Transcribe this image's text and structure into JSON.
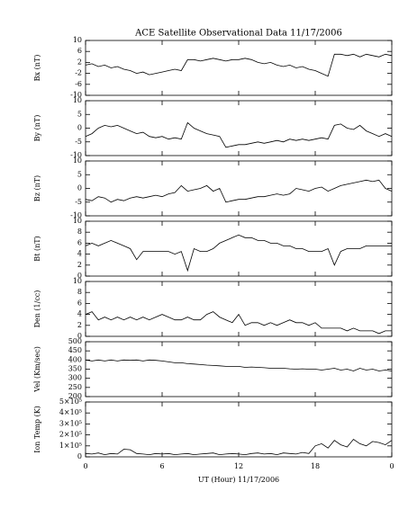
{
  "chart_data": {
    "type": "line",
    "title": "ACE Satellite Observational Data   11/17/2006",
    "xlabel": "UT (Hour)  11/17/2006",
    "xlim": [
      0,
      24
    ],
    "xticks": [
      0,
      6,
      12,
      18,
      {
        "value": 24,
        "label": "0"
      }
    ],
    "color": "#000000",
    "x": [
      0,
      0.5,
      1,
      1.5,
      2,
      2.5,
      3,
      3.5,
      4,
      4.5,
      5,
      5.5,
      6,
      6.5,
      7,
      7.5,
      8,
      8.5,
      9,
      9.5,
      10,
      10.5,
      11,
      11.5,
      12,
      12.5,
      13,
      13.5,
      14,
      14.5,
      15,
      15.5,
      16,
      16.5,
      17,
      17.5,
      18,
      18.5,
      19,
      19.5,
      20,
      20.5,
      21,
      21.5,
      22,
      22.5,
      23,
      23.5,
      24
    ],
    "panels": [
      {
        "ylabel": "Bx (nT)",
        "ylim": [
          -10,
          10
        ],
        "yticks": [
          -10,
          -6,
          -2,
          2,
          6,
          10
        ],
        "values": [
          1,
          1.5,
          0.5,
          1,
          0,
          0.5,
          -0.5,
          -1,
          -2,
          -1.5,
          -2.5,
          -2,
          -1.5,
          -1,
          -0.5,
          -1,
          3,
          3,
          2.5,
          3,
          3.5,
          3,
          2.5,
          3,
          3,
          3.5,
          3,
          2,
          1.5,
          2,
          1,
          0.5,
          1,
          0,
          0.5,
          -0.5,
          -1,
          -2,
          -3,
          5,
          5,
          4.5,
          5,
          4,
          5,
          4.5,
          4,
          5,
          4.5
        ]
      },
      {
        "ylabel": "By (nT)",
        "ylim": [
          -10,
          10
        ],
        "yticks": [
          -10,
          -5,
          0,
          5,
          10
        ],
        "values": [
          -3,
          -2,
          0,
          1,
          0.5,
          1,
          0,
          -1,
          -2,
          -1.5,
          -3,
          -3.5,
          -3,
          -4,
          -3.5,
          -4,
          2,
          0,
          -1,
          -2,
          -2.5,
          -3,
          -7,
          -6.5,
          -6,
          -6,
          -5.5,
          -5,
          -5.5,
          -5,
          -4.5,
          -5,
          -4,
          -4.5,
          -4,
          -4.5,
          -4,
          -3.5,
          -4,
          1,
          1.5,
          0,
          -0.5,
          1,
          -1,
          -2,
          -3,
          -2,
          -3
        ]
      },
      {
        "ylabel": "Bz (nT)",
        "ylim": [
          -10,
          10
        ],
        "yticks": [
          -10,
          -5,
          0,
          5,
          10
        ],
        "values": [
          -4,
          -4.5,
          -3,
          -3.5,
          -5,
          -4,
          -4.5,
          -3.5,
          -3,
          -3.5,
          -3,
          -2.5,
          -3,
          -2,
          -1.5,
          1,
          -1,
          -0.5,
          0,
          1,
          -1,
          0,
          -5,
          -4.5,
          -4,
          -4,
          -3.5,
          -3,
          -3,
          -2.5,
          -2,
          -2.5,
          -2,
          0,
          -0.5,
          -1,
          0,
          0.5,
          -1,
          0,
          1,
          1.5,
          2,
          2.5,
          3,
          2.5,
          3,
          0,
          -1
        ]
      },
      {
        "ylabel": "Bt (nT)",
        "ylim": [
          0,
          10
        ],
        "yticks": [
          0,
          2,
          4,
          6,
          8,
          10
        ],
        "values": [
          5.5,
          6,
          5.5,
          6,
          6.5,
          6,
          5.5,
          5,
          3,
          4.5,
          4.5,
          4.5,
          4.5,
          4.5,
          4,
          4.5,
          1,
          5,
          4.5,
          4.5,
          5,
          6,
          6.5,
          7,
          7.5,
          7,
          7,
          6.5,
          6.5,
          6,
          6,
          5.5,
          5.5,
          5,
          5,
          4.5,
          4.5,
          4.5,
          5,
          2,
          4.5,
          5,
          5,
          5,
          5.5,
          5.5,
          5.5,
          5.5,
          5.5
        ]
      },
      {
        "ylabel": "Den (1/cc)",
        "ylim": [
          0,
          10
        ],
        "yticks": [
          0,
          2,
          4,
          6,
          8,
          10
        ],
        "values": [
          4,
          4.5,
          3,
          3.5,
          3,
          3.5,
          3,
          3.5,
          3,
          3.5,
          3,
          3.5,
          4,
          3.5,
          3,
          3,
          3.5,
          3,
          3,
          4,
          4.5,
          3.5,
          3,
          2.5,
          4,
          2,
          2.5,
          2.5,
          2,
          2.5,
          2,
          2.5,
          3,
          2.5,
          2.5,
          2,
          2.5,
          1.5,
          1.5,
          1.5,
          1.5,
          1,
          1.5,
          1,
          1,
          1,
          0.5,
          1,
          1
        ]
      },
      {
        "ylabel": "Vel (Km/sec)",
        "ylim": [
          200,
          500
        ],
        "yticks": [
          200,
          250,
          300,
          350,
          400,
          450,
          500
        ],
        "values": [
          400,
          395,
          400,
          395,
          400,
          395,
          400,
          398,
          400,
          395,
          400,
          398,
          395,
          390,
          385,
          385,
          380,
          378,
          375,
          372,
          370,
          368,
          365,
          365,
          365,
          360,
          362,
          360,
          358,
          355,
          355,
          355,
          352,
          350,
          352,
          350,
          350,
          345,
          350,
          355,
          345,
          350,
          340,
          355,
          345,
          350,
          340,
          345,
          340
        ]
      },
      {
        "ylabel": "Ion Temp (K)",
        "ylim": [
          0,
          500000
        ],
        "yticks": [
          0,
          {
            "value": 100000,
            "label": "1×10⁵"
          },
          {
            "value": 200000,
            "label": "2×10⁵"
          },
          {
            "value": 300000,
            "label": "3×10⁵"
          },
          {
            "value": 400000,
            "label": "4×10⁵"
          },
          {
            "value": 500000,
            "label": "5×10⁵"
          }
        ],
        "values": [
          30000,
          25000,
          35000,
          20000,
          30000,
          25000,
          70000,
          65000,
          30000,
          25000,
          20000,
          30000,
          25000,
          30000,
          20000,
          25000,
          30000,
          20000,
          25000,
          30000,
          35000,
          20000,
          25000,
          30000,
          25000,
          20000,
          30000,
          35000,
          25000,
          30000,
          20000,
          35000,
          30000,
          25000,
          40000,
          30000,
          100000,
          120000,
          80000,
          150000,
          110000,
          90000,
          160000,
          120000,
          100000,
          140000,
          130000,
          110000,
          150000
        ]
      }
    ]
  }
}
